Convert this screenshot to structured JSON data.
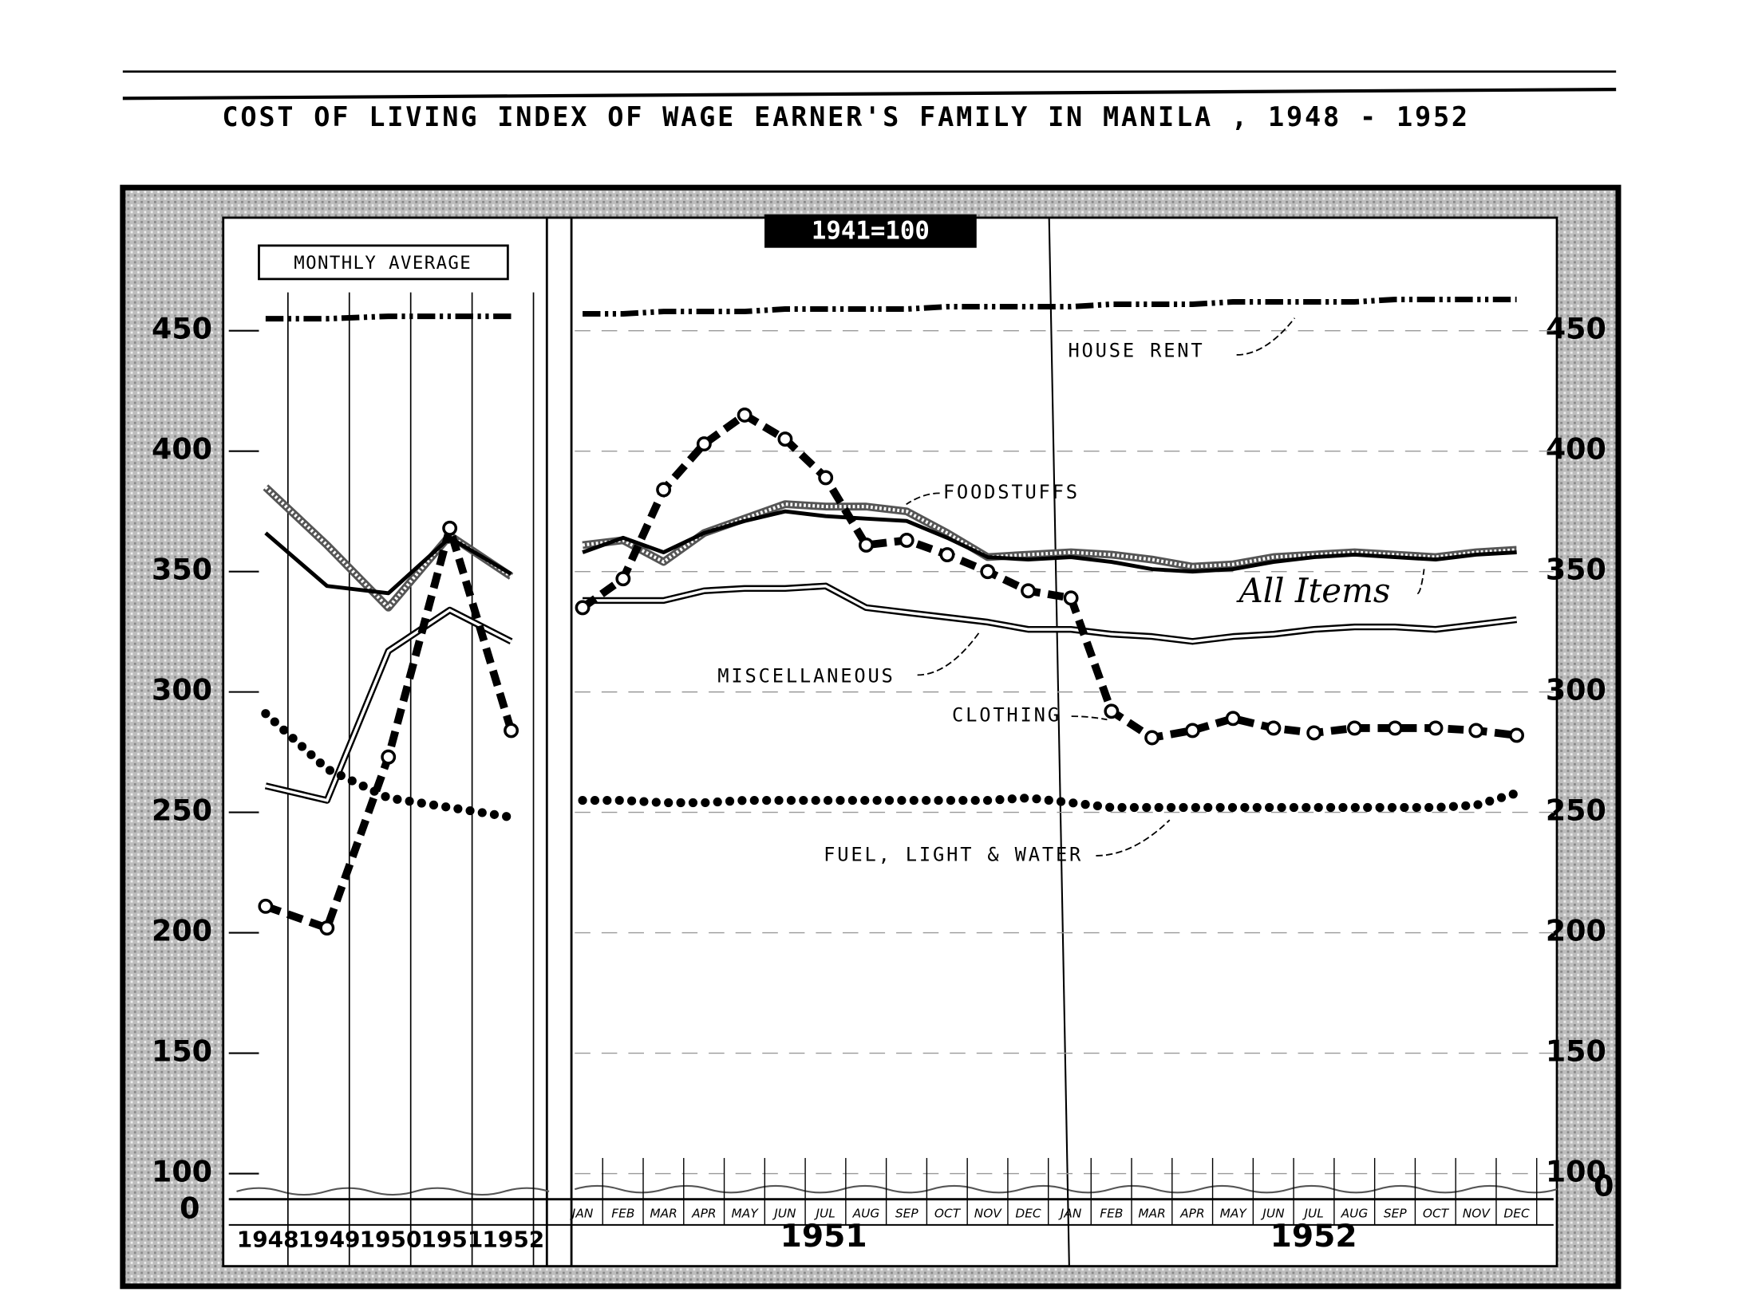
{
  "chart_data": {
    "type": "line",
    "title": "COST OF LIVING INDEX OF WAGE EARNER'S FAMILY IN MANILA , 1948 - 1952",
    "subtitle": "1941=100",
    "panel_label": "MONTHLY AVERAGE",
    "annual_categories": [
      "1948",
      "1949",
      "1950",
      "1951",
      "1952"
    ],
    "monthly_categories": [
      "JAN",
      "FEB",
      "MAR",
      "APR",
      "MAY",
      "JUN",
      "JUL",
      "AUG",
      "SEP",
      "OCT",
      "NOV",
      "DEC",
      "JAN",
      "FEB",
      "MAR",
      "APR",
      "MAY",
      "JUN",
      "JUL",
      "AUG",
      "SEP",
      "OCT",
      "NOV",
      "DEC"
    ],
    "monthly_years": [
      "1951",
      "1952"
    ],
    "ylim": [
      100,
      490
    ],
    "yticks": [
      100,
      150,
      200,
      250,
      300,
      350,
      400,
      450
    ],
    "axis_break_label": "0",
    "grid": true,
    "series": [
      {
        "name": "HOUSE RENT",
        "color": "#000000",
        "style": "dash-dot",
        "annual": [
          455,
          455,
          456,
          456,
          456
        ],
        "monthly": [
          457,
          457,
          458,
          458,
          458,
          459,
          459,
          459,
          459,
          460,
          460,
          460,
          460,
          461,
          461,
          461,
          462,
          462,
          462,
          462,
          463,
          463,
          463,
          463
        ]
      },
      {
        "name": "FOODSTUFFS",
        "color": "#555555",
        "style": "hatched",
        "annual": [
          385,
          361,
          335,
          365,
          348
        ],
        "monthly": [
          361,
          363,
          354,
          366,
          372,
          378,
          377,
          377,
          375,
          366,
          356,
          357,
          358,
          357,
          355,
          352,
          353,
          356,
          357,
          358,
          357,
          356,
          358,
          359
        ]
      },
      {
        "name": "All Items",
        "color": "#000000",
        "style": "solid",
        "annual": [
          366,
          344,
          341,
          364,
          349
        ],
        "monthly": [
          358,
          364,
          358,
          366,
          371,
          375,
          373,
          372,
          371,
          364,
          356,
          355,
          356,
          354,
          351,
          350,
          351,
          354,
          356,
          357,
          356,
          355,
          357,
          358
        ]
      },
      {
        "name": "MISCELLANEOUS",
        "color": "#000000",
        "style": "double",
        "annual": [
          261,
          255,
          317,
          334,
          321
        ],
        "monthly": [
          338,
          338,
          338,
          342,
          343,
          343,
          344,
          335,
          333,
          331,
          329,
          326,
          326,
          324,
          323,
          321,
          323,
          324,
          326,
          327,
          327,
          326,
          328,
          330
        ]
      },
      {
        "name": "CLOTHING",
        "color": "#000000",
        "style": "dashed-circles",
        "annual": [
          211,
          202,
          273,
          368,
          284
        ],
        "monthly": [
          335,
          347,
          384,
          403,
          415,
          405,
          389,
          361,
          363,
          357,
          350,
          342,
          339,
          292,
          281,
          284,
          289,
          285,
          283,
          285,
          285,
          285,
          284,
          282
        ]
      },
      {
        "name": "FUEL, LIGHT & WATER",
        "color": "#000000",
        "style": "dotted",
        "annual": [
          291,
          268,
          256,
          252,
          248
        ],
        "monthly": [
          255,
          255,
          254,
          254,
          255,
          255,
          255,
          255,
          255,
          255,
          255,
          256,
          254,
          252,
          252,
          252,
          252,
          252,
          252,
          252,
          252,
          252,
          253,
          258
        ]
      }
    ]
  }
}
